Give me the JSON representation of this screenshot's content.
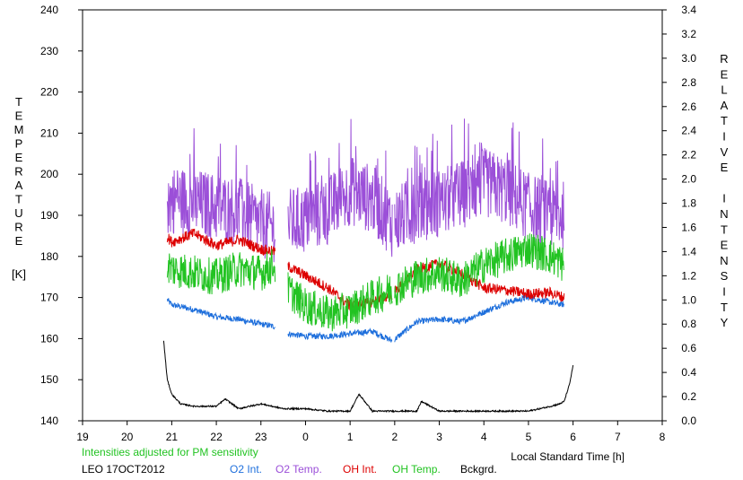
{
  "chart_data": {
    "type": "line",
    "x_axis": {
      "label": "Local Standard Time [h]",
      "range_hours": [
        19,
        32
      ],
      "tick_labels": [
        "19",
        "20",
        "21",
        "22",
        "23",
        "0",
        "1",
        "2",
        "3",
        "4",
        "5",
        "6",
        "7",
        "8"
      ]
    },
    "y_left": {
      "label": "TEMPERATURE",
      "unit": "[K]",
      "range": [
        140,
        240
      ],
      "ticks": [
        140,
        150,
        160,
        170,
        180,
        190,
        200,
        210,
        220,
        230,
        240
      ]
    },
    "y_right": {
      "label": "RELATIVE INTENSITY",
      "range": [
        0,
        3.4
      ],
      "ticks": [
        "0.0",
        "0.2",
        "0.4",
        "0.6",
        "0.8",
        "1.0",
        "1.2",
        "1.4",
        "1.6",
        "1.8",
        "2.0",
        "2.2",
        "2.4",
        "2.6",
        "2.8",
        "3.0",
        "3.2",
        "3.4"
      ]
    },
    "note": "Intensities adjusted for PM sensitivity",
    "station_date": "LEO 17OCT2012",
    "grid": false,
    "legend_position": "bottom",
    "gaps_hours": [
      [
        23.32,
        23.6
      ],
      [
        25.95,
        26.0
      ]
    ],
    "series": [
      {
        "name": "O2 Int.",
        "color": "#1e6fdc",
        "axis": "right",
        "x": [
          20.9,
          21.0,
          21.5,
          22.0,
          22.5,
          23.0,
          23.3,
          23.6,
          24.0,
          24.5,
          25.0,
          25.5,
          25.95,
          26.5,
          27.0,
          27.5,
          28.0,
          28.5,
          29.0,
          29.5,
          29.8
        ],
        "y": [
          1.0,
          0.96,
          0.92,
          0.86,
          0.84,
          0.8,
          0.78,
          0.72,
          0.7,
          0.7,
          0.72,
          0.74,
          0.66,
          0.82,
          0.84,
          0.82,
          0.9,
          0.98,
          1.02,
          0.98,
          0.96
        ]
      },
      {
        "name": "O2 Temp.",
        "color": "#9b4fd8",
        "axis": "left",
        "x": [
          20.9,
          21.0,
          21.5,
          22.0,
          22.5,
          23.0,
          23.3,
          23.6,
          24.0,
          24.5,
          25.0,
          25.5,
          25.95,
          26.5,
          27.0,
          27.5,
          28.0,
          28.5,
          29.0,
          29.5,
          29.8
        ],
        "y": [
          192,
          194,
          193,
          192,
          191,
          188,
          187,
          188,
          189,
          191,
          196,
          194,
          188,
          192,
          193,
          195,
          198,
          196,
          192,
          190,
          190
        ]
      },
      {
        "name": "OH Int.",
        "color": "#dd0000",
        "axis": "right",
        "x": [
          20.9,
          21.0,
          21.5,
          22.0,
          22.5,
          23.0,
          23.3,
          23.6,
          24.0,
          24.5,
          25.0,
          25.5,
          25.95,
          26.5,
          27.0,
          27.5,
          28.0,
          28.5,
          29.0,
          29.5,
          29.8
        ],
        "y": [
          1.52,
          1.48,
          1.55,
          1.45,
          1.5,
          1.42,
          1.4,
          1.28,
          1.2,
          1.1,
          0.95,
          0.98,
          1.05,
          1.25,
          1.3,
          1.22,
          1.1,
          1.08,
          1.05,
          1.06,
          1.02
        ]
      },
      {
        "name": "OH Temp.",
        "color": "#22c322",
        "axis": "left",
        "x": [
          20.9,
          21.0,
          21.5,
          22.0,
          22.5,
          23.0,
          23.3,
          23.6,
          24.0,
          24.5,
          25.0,
          25.5,
          25.95,
          26.5,
          27.0,
          27.5,
          28.0,
          28.5,
          29.0,
          29.5,
          29.8
        ],
        "y": [
          178,
          177,
          176,
          175,
          177,
          176,
          178,
          172,
          168,
          166,
          167,
          170,
          172,
          175,
          176,
          174,
          178,
          180,
          182,
          180,
          178
        ]
      },
      {
        "name": "Bckgrd.",
        "color": "#000000",
        "axis": "right",
        "x": [
          20.82,
          20.9,
          21.0,
          21.2,
          21.5,
          22.0,
          22.2,
          22.5,
          23.0,
          23.5,
          24.0,
          24.5,
          25.0,
          25.2,
          25.5,
          26.0,
          26.5,
          26.6,
          27.0,
          28.0,
          28.5,
          29.0,
          29.5,
          29.7,
          29.8,
          29.92,
          30.0
        ],
        "y": [
          0.66,
          0.34,
          0.22,
          0.14,
          0.12,
          0.12,
          0.18,
          0.1,
          0.14,
          0.1,
          0.1,
          0.08,
          0.08,
          0.22,
          0.08,
          0.08,
          0.08,
          0.16,
          0.08,
          0.08,
          0.08,
          0.08,
          0.12,
          0.14,
          0.16,
          0.3,
          0.46
        ]
      }
    ]
  }
}
